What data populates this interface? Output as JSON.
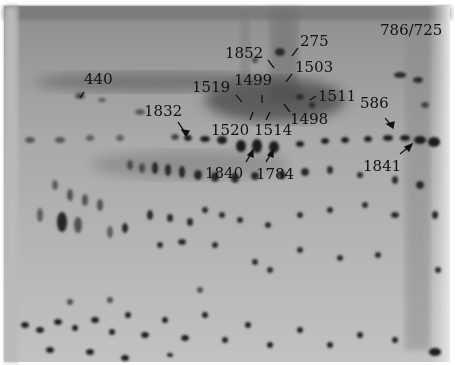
{
  "gel": {
    "corner_label": "786/725",
    "spot_labels": [
      "275",
      "1852",
      "1503",
      "1499",
      "1519",
      "1511",
      "1498",
      "440",
      "1832",
      "1520",
      "1514",
      "586",
      "1840",
      "1784",
      "1841"
    ]
  }
}
